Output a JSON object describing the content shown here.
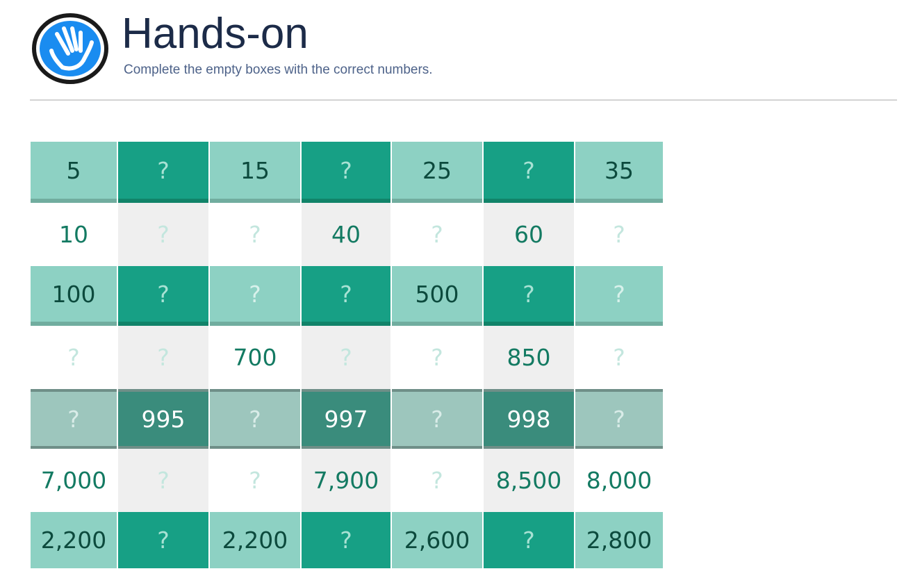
{
  "header": {
    "logo_icon": "hand-icon",
    "title": "Hands-on",
    "subtitle": "Complete the empty boxes with the correct numbers."
  },
  "colors": {
    "title": "#1c2b48",
    "subtitle": "#4d6289",
    "logo_blue": "#1a8cf0",
    "teal_light": "#8dd1c3",
    "teal_dark": "#17a085",
    "teal_text": "#137a62"
  },
  "grid": {
    "rows": [
      {
        "style": "banded",
        "cells": [
          "5",
          "?",
          "15",
          "?",
          "25",
          "?",
          "35"
        ]
      },
      {
        "style": "plain",
        "cells": [
          "10",
          "?",
          "?",
          "40",
          "?",
          "60",
          "?"
        ]
      },
      {
        "style": "banded",
        "cells": [
          "100",
          "?",
          "?",
          "?",
          "500",
          "?",
          "?"
        ]
      },
      {
        "style": "plain",
        "cells": [
          "?",
          "?",
          "700",
          "?",
          "?",
          "850",
          "?"
        ]
      },
      {
        "style": "dark",
        "cells": [
          "?",
          "995",
          "?",
          "997",
          "?",
          "998",
          "?"
        ]
      },
      {
        "style": "plain",
        "cells": [
          "7,000",
          "?",
          "?",
          "7,900",
          "?",
          "8,500",
          "8,000"
        ]
      },
      {
        "style": "last",
        "cells": [
          "2,200",
          "?",
          "2,200",
          "?",
          "2,600",
          "?",
          "2,800"
        ]
      }
    ]
  }
}
